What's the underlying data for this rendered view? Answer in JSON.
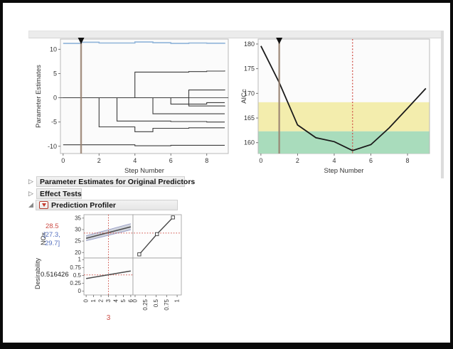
{
  "colors": {
    "accent_red": "#cf4a41",
    "step_marker_brown": "#97806f",
    "entered_term_blue": "#8fb4d9",
    "band_yellow": "#f3edad",
    "band_green": "#a9dcbc",
    "ci_blue": "#5570bf",
    "value_red": "#cc4b44"
  },
  "sections": [
    {
      "label": "Parameter Estimates for Original Predictors",
      "collapsed": true
    },
    {
      "label": "Effect Tests",
      "collapsed": true
    },
    {
      "label": "Prediction Profiler",
      "collapsed": false
    }
  ],
  "profiler_panel": {
    "response_name": "NOx",
    "predicted": "28.5",
    "ci_line1": "[27.3,",
    "ci_line2": "29.7]",
    "desirability_name": "Desirability",
    "desirability_value": "0.516426",
    "factor_current": "3"
  },
  "chart_data": [
    {
      "id": "solution-path",
      "type": "line",
      "title": "",
      "xlabel": "Step Number",
      "ylabel": "Parameter Estimates",
      "xlim": [
        -0.15,
        9.2
      ],
      "ylim": [
        -11.5,
        12.1
      ],
      "xticks": [
        0,
        2,
        4,
        6,
        8
      ],
      "yticks": [
        -10,
        -5,
        0,
        5,
        10
      ],
      "step_interpolation": true,
      "zero_line": true,
      "current_step": 1,
      "x": [
        0,
        1,
        2,
        3,
        4,
        5,
        6,
        7,
        8,
        9
      ],
      "series": [
        {
          "name": "selected-term",
          "color": "#8fb4d9",
          "width": 1.6,
          "values": [
            11.2,
            11.45,
            11.3,
            11.3,
            11.5,
            11.35,
            11.2,
            11.3,
            11.25,
            11.35
          ]
        },
        {
          "name": "term-2",
          "color": "#3c3c3c",
          "width": 1.1,
          "values": [
            0,
            0,
            0,
            0,
            5.3,
            5.3,
            5.3,
            5.4,
            5.5,
            5.6
          ]
        },
        {
          "name": "term-3",
          "color": "#3c3c3c",
          "width": 1.1,
          "values": [
            0,
            0,
            0,
            0,
            0,
            0,
            0,
            1.6,
            1.6,
            1.7
          ]
        },
        {
          "name": "term-4",
          "color": "#3c3c3c",
          "width": 1.1,
          "values": [
            0,
            0,
            0,
            0,
            0,
            0,
            -1.3,
            -1.3,
            -1.0,
            -1.0
          ]
        },
        {
          "name": "term-5",
          "color": "#3c3c3c",
          "width": 1.1,
          "values": [
            0,
            0,
            0,
            0,
            0,
            0,
            0,
            -1.7,
            -1.7,
            -1.8
          ]
        },
        {
          "name": "term-6",
          "color": "#3c3c3c",
          "width": 1.1,
          "values": [
            0,
            0,
            0,
            0,
            0,
            -3.3,
            -3.3,
            -3.3,
            -3.3,
            -3.3
          ]
        },
        {
          "name": "term-7",
          "color": "#3c3c3c",
          "width": 1.1,
          "values": [
            0,
            0,
            0,
            -4.8,
            -4.8,
            -4.8,
            -4.9,
            -4.9,
            -5.0,
            -5.0
          ]
        },
        {
          "name": "term-8",
          "color": "#3c3c3c",
          "width": 1.1,
          "values": [
            0,
            0,
            -6.0,
            -6.0,
            -7.0,
            -6.3,
            -6.3,
            -6.2,
            -6.2,
            -6.2
          ]
        },
        {
          "name": "term-9",
          "color": "#3c3c3c",
          "width": 1.1,
          "values": [
            -9.7,
            -9.7,
            -9.7,
            -9.7,
            -9.9,
            -9.9,
            -9.8,
            -9.8,
            -9.8,
            -9.8
          ]
        }
      ]
    },
    {
      "id": "aicc-path",
      "type": "line",
      "title": "",
      "xlabel": "Step Number",
      "ylabel": "AICc",
      "xlim": [
        -0.15,
        9.2
      ],
      "ylim": [
        157.8,
        181
      ],
      "xticks": [
        0,
        2,
        4,
        6,
        8
      ],
      "yticks": [
        160,
        165,
        170,
        175,
        180
      ],
      "x": [
        0,
        1,
        2,
        3,
        4,
        5,
        6,
        7,
        8,
        9
      ],
      "values": [
        179.6,
        172.2,
        163.6,
        161.0,
        160.2,
        158.4,
        159.6,
        163.0,
        167.0,
        171.0
      ],
      "line_color": "#1a1a1a",
      "bands": [
        {
          "name": "yellow-zone",
          "from": 162.3,
          "to": 168.2,
          "color": "#f3edad"
        },
        {
          "name": "green-zone",
          "from": 157.8,
          "to": 162.3,
          "color": "#a9dcbc"
        }
      ],
      "current_step": 1,
      "best_step": 5
    },
    {
      "id": "prediction-profiler",
      "type": "profiler",
      "rows": [
        {
          "label": "NOx",
          "ticks": [
            20,
            25,
            30,
            35
          ],
          "lim": [
            17.6,
            36.5
          ]
        },
        {
          "label": "Desirability",
          "ticks": [
            0,
            0.25,
            0.5,
            0.75,
            1
          ],
          "lim": [
            -0.12,
            1.05
          ]
        }
      ],
      "factor": {
        "ticks": [
          0,
          1,
          2,
          3,
          4,
          5,
          6
        ],
        "lim": [
          -0.3,
          6.3
        ],
        "current": 3,
        "current_label": "3"
      },
      "desir_col": {
        "ticks": [
          0,
          0.25,
          0.5,
          0.75,
          1
        ],
        "lim": [
          -0.05,
          1.1
        ]
      },
      "nox_trace": {
        "x": [
          0,
          6
        ],
        "y": [
          26.2,
          31.2
        ]
      },
      "nox_band": {
        "x": [
          0,
          6
        ],
        "upper": [
          27.3,
          32.6
        ],
        "lower": [
          25.1,
          29.9
        ]
      },
      "desir_func": {
        "d": [
          0.1,
          0.52,
          0.9
        ],
        "nox": [
          19.2,
          28.0,
          35.3
        ]
      },
      "desir_trace": {
        "x": [
          0,
          6
        ],
        "y": [
          0.4,
          0.64
        ]
      },
      "current_nox": 28.5,
      "current_desir": 0.516
    }
  ]
}
